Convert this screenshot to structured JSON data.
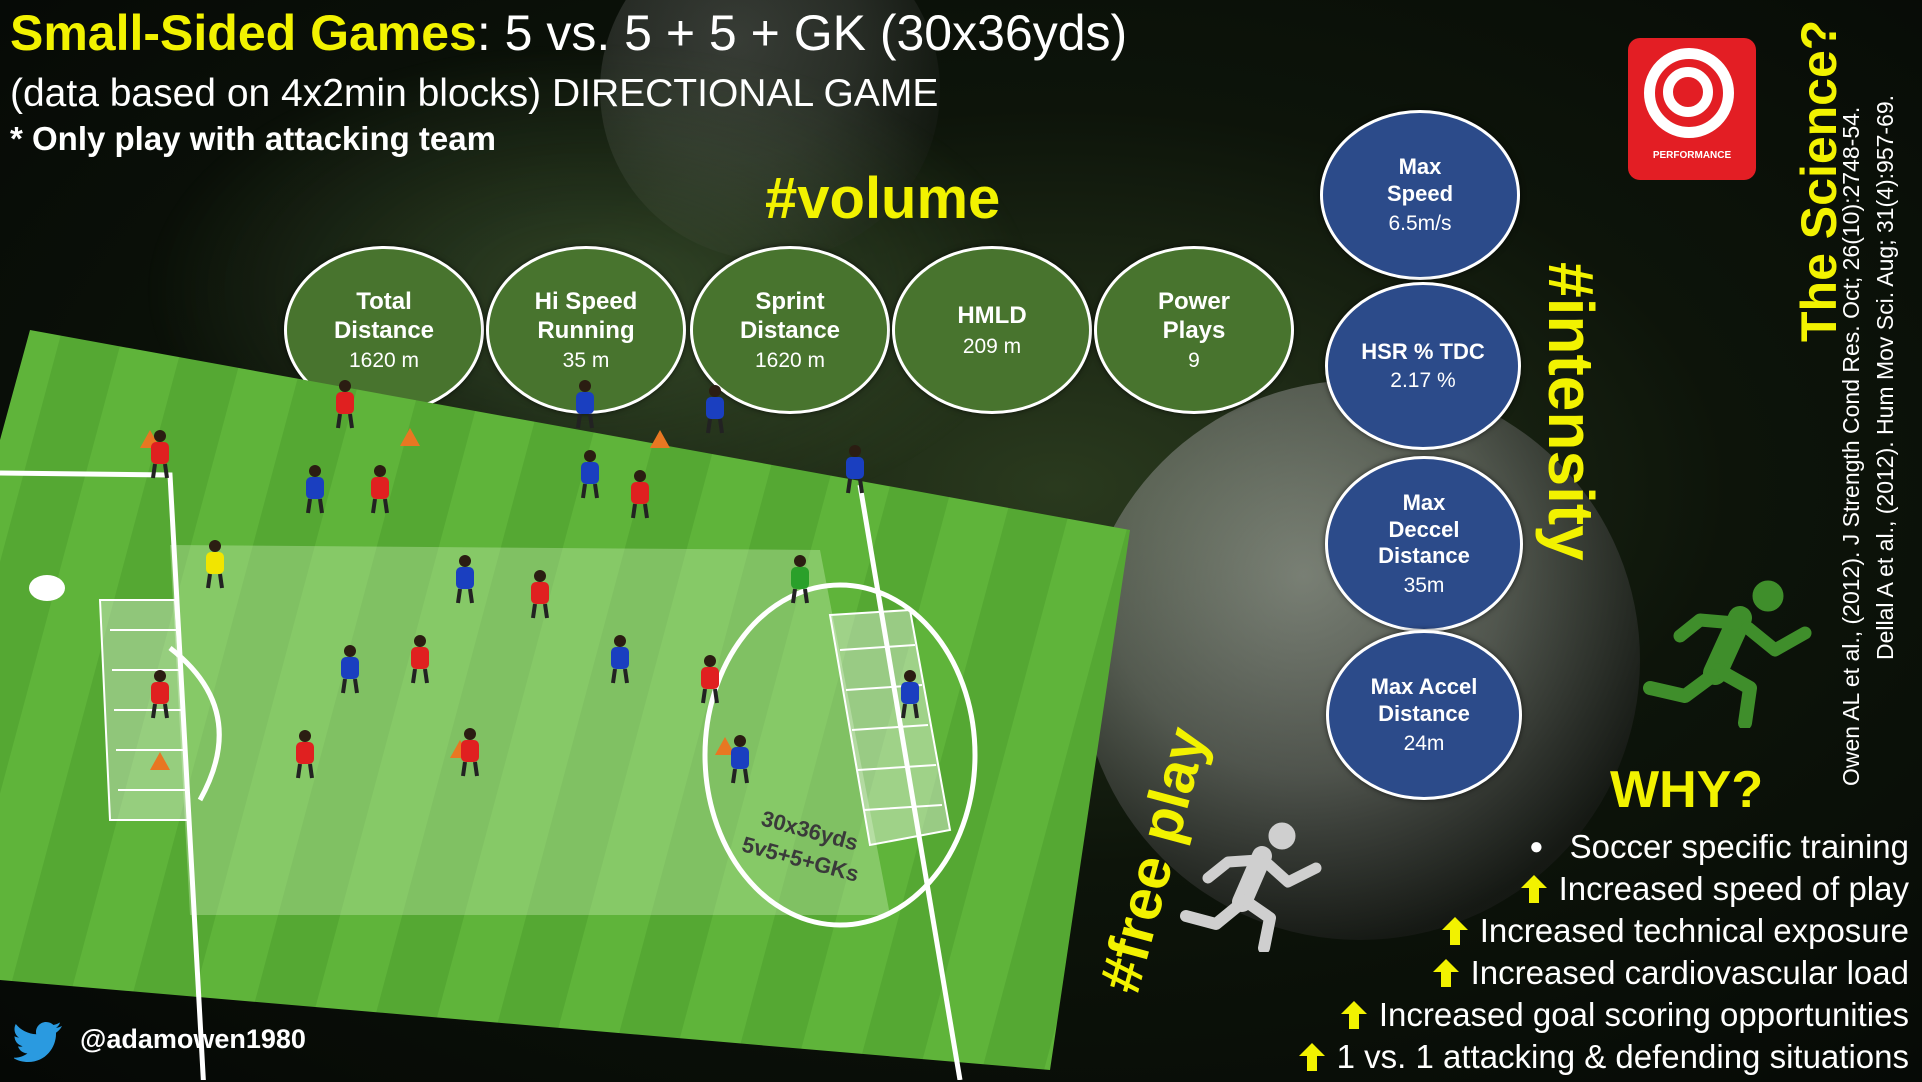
{
  "header": {
    "title_highlight": "Small-Sided Games",
    "title_rest": ": 5 vs. 5 + 5 + GK (30x36yds)",
    "subtitle": "(data based on 4x2min blocks) DIRECTIONAL GAME",
    "note": "* Only play with attacking team"
  },
  "hashtags": {
    "volume": "#volume",
    "intensity": "#intensity",
    "free_play": "#free play"
  },
  "volume_metrics": [
    {
      "label": "Total\nDistance",
      "value": "1620 m"
    },
    {
      "label": "Hi Speed\nRunning",
      "value": "35 m"
    },
    {
      "label": "Sprint\nDistance",
      "value": "1620 m"
    },
    {
      "label": "HMLD",
      "value": "209 m"
    },
    {
      "label": "Power\nPlays",
      "value": "9"
    }
  ],
  "intensity_metrics": [
    {
      "label": "Max\nSpeed",
      "value": "6.5m/s"
    },
    {
      "label": "HSR % TDC",
      "value": "2.17 %"
    },
    {
      "label": "Max\nDeccel\nDistance",
      "value": "35m"
    },
    {
      "label": "Max Accel\nDistance",
      "value": "24m"
    }
  ],
  "logo": {
    "text": "PERFORMANCE"
  },
  "science": {
    "title": "The Science?",
    "ref1": "Owen AL et al., (2012). J Strength Cond Res. Oct; 26(10):2748-54.",
    "ref2": "Dellal A et al., (2012). Hum Mov Sci. Aug; 31(4):957-69."
  },
  "why": {
    "title": "WHY?",
    "reasons": [
      "Soccer specific training",
      "Increased speed of play",
      "Increased technical exposure",
      "Increased cardiovascular load",
      "Increased goal scoring opportunities",
      "1 vs. 1 attacking & defending situations"
    ]
  },
  "pitch": {
    "label_line1": "30x36yds",
    "label_line2": "5v5+5+GKs"
  },
  "social": {
    "handle": "@adamowen1980",
    "icon": "twitter-bird-icon"
  },
  "colors": {
    "accent_yellow": "#f2f200",
    "volume_green": "#48742e",
    "intensity_blue": "#2c4b8a",
    "logo_red": "#e31e24",
    "team_red": "#e02020",
    "team_blue": "#1a3fc0"
  }
}
